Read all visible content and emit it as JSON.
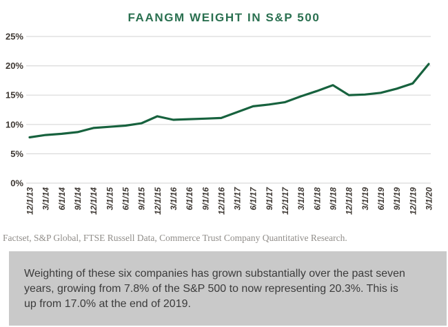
{
  "title": "FAANGM WEIGHT IN S&P 500",
  "source_note": "Factset, S&P Global, FTSE Russell Data, Commerce Trust Company Quantitative Research.",
  "caption": "Weighting of these six companies has grown substantially over the past seven years, growing from 7.8% of the S&P 500 to now representing 20.3%. This is up from 17.0% at the end of 2019.",
  "colors": {
    "line": "#17623e",
    "title": "#2a7050",
    "grid": "#d9d9d9",
    "axis_text": "#3e3833",
    "source_text": "#908d89",
    "caption_bg": "#c9c9c9",
    "caption_text": "#3b3b3b"
  },
  "chart_data": {
    "type": "line",
    "title": "FAANGM WEIGHT IN S&P 500",
    "x": [
      "12/1/13",
      "3/1/14",
      "6/1/14",
      "9/1/14",
      "12/1/14",
      "3/1/15",
      "6/1/15",
      "9/1/15",
      "12/1/15",
      "3/1/16",
      "6/1/16",
      "9/1/16",
      "12/1/16",
      "3/1/17",
      "6/1/17",
      "9/1/17",
      "12/1/17",
      "3/1/18",
      "6/1/18",
      "9/1/18",
      "12/1/18",
      "3/1/19",
      "6/1/19",
      "9/1/19",
      "12/1/19",
      "3/1/20"
    ],
    "values": [
      7.8,
      8.2,
      8.4,
      8.7,
      9.4,
      9.6,
      9.8,
      10.2,
      11.4,
      10.8,
      10.9,
      11.0,
      11.1,
      12.1,
      13.1,
      13.4,
      13.8,
      14.8,
      15.7,
      16.7,
      15.0,
      15.1,
      15.4,
      16.1,
      17.0,
      20.3
    ],
    "series_name": "FAANGM weight",
    "xlabel": "",
    "ylabel": "",
    "ylim": [
      0,
      25
    ],
    "ytick_values": [
      0,
      5,
      10,
      15,
      20,
      25
    ],
    "ytick_labels": [
      "0%",
      "5%",
      "10%",
      "15%",
      "20%",
      "25%"
    ],
    "grid": "horizontal",
    "legend": "none"
  }
}
